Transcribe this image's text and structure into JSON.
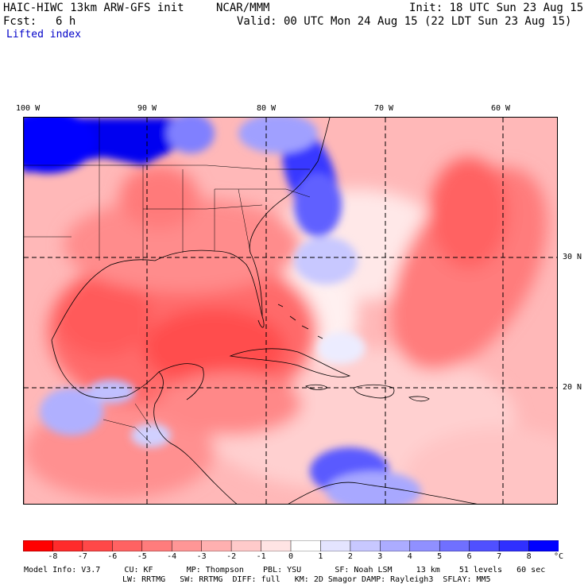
{
  "header": {
    "model_title": "HAIC-HIWC 13km ARW-GFS init",
    "org": "NCAR/MMM",
    "init": "Init: 18 UTC Sun 23 Aug 15",
    "fcst_label": "Fcst:",
    "fcst_value": "6 h",
    "valid": "Valid: 00 UTC Mon 24 Aug 15 (22 LDT Sun 23 Aug 15)",
    "field": "Lifted index"
  },
  "map": {
    "lon_labels": [
      "100 W",
      "90 W",
      "80 W",
      "70 W",
      "60 W"
    ],
    "lat_labels": [
      "30 N",
      "20 N"
    ],
    "regions": {
      "us_north_stable": "strong positive lifted index",
      "gulf_of_mexico": "strongly negative lifted index",
      "atlantic_band": "negative lifted index band"
    }
  },
  "colorbar": {
    "ticks": [
      "-8",
      "-7",
      "-6",
      "-5",
      "-4",
      "-3",
      "-2",
      "-1",
      "0",
      "1",
      "2",
      "3",
      "4",
      "5",
      "6",
      "7",
      "8"
    ],
    "unit": "°C",
    "colors": [
      "#ff0000",
      "#ff2b2b",
      "#ff4848",
      "#ff6262",
      "#ff7c7c",
      "#ff9696",
      "#ffb0b0",
      "#ffcaca",
      "#ffe4e4",
      "#ffffff",
      "#e4e4ff",
      "#c8c8ff",
      "#acacff",
      "#9090ff",
      "#7070ff",
      "#5050ff",
      "#3030ff",
      "#0000ff"
    ]
  },
  "model_info": {
    "line1": "Model Info: V3.7     CU: KF       MP: Thompson    PBL: YSU       SF: Noah LSM     13 km    51 levels   60 sec",
    "line2": "LW: RRTMG   SW: RRTMG  DIFF: full   KM: 2D Smagor DAMP: Rayleigh3  SFLAY: MM5"
  }
}
